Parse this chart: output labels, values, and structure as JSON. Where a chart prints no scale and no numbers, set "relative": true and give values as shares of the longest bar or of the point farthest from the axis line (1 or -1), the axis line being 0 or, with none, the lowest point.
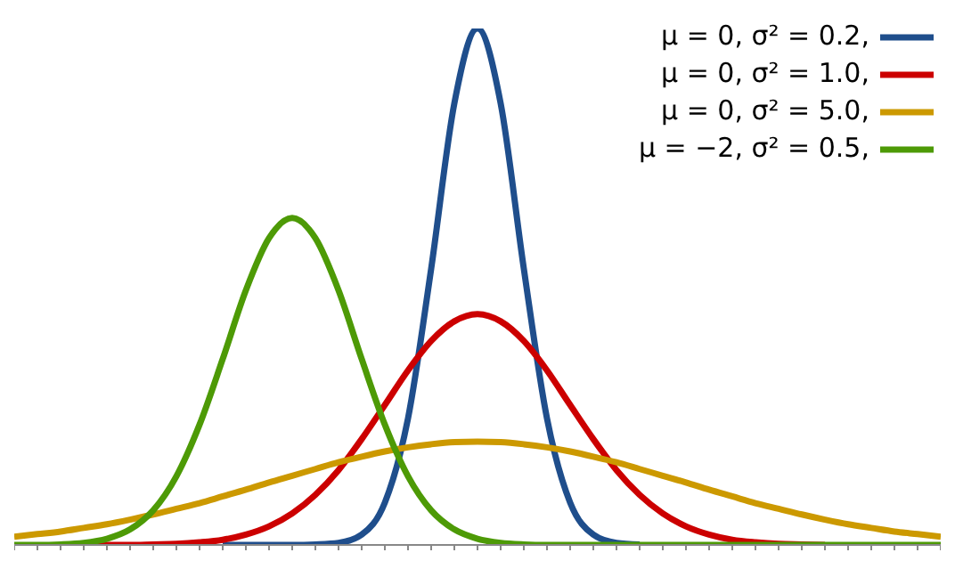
{
  "chart_data": {
    "type": "line",
    "relative": true,
    "legend": "top right",
    "categories": [
      null,
      null,
      null,
      null,
      null,
      null,
      null,
      null,
      null,
      null,
      null,
      null,
      null,
      null,
      null,
      null,
      null,
      null,
      null,
      null,
      null,
      null,
      null,
      null,
      null,
      null,
      null,
      null,
      null,
      null,
      null,
      null,
      null,
      null,
      null,
      null,
      null,
      null,
      null,
      null,
      null
    ],
    "series": [
      {
        "name": "μ = 0,   σ² = 0.2,",
        "color": "#1f4e8c",
        "values": [
          null,
          null,
          null,
          null,
          null,
          null,
          null,
          null,
          null,
          0,
          0,
          0,
          0,
          0.001,
          0.004,
          0.02,
          0.082,
          0.245,
          0.535,
          0.855,
          1,
          0.855,
          0.535,
          0.245,
          0.082,
          0.02,
          0.004,
          0.001,
          null,
          null,
          null,
          null,
          null,
          null,
          null,
          null,
          null,
          null,
          null,
          null,
          null
        ]
      },
      {
        "name": "μ = 0,   σ² = 1.0,",
        "color": "#cc0000",
        "values": [
          null,
          null,
          0,
          0,
          0,
          0,
          0.001,
          0.002,
          0.005,
          0.01,
          0.02,
          0.036,
          0.061,
          0.097,
          0.145,
          0.205,
          0.271,
          0.338,
          0.395,
          0.433,
          0.447,
          0.433,
          0.395,
          0.338,
          0.271,
          0.205,
          0.145,
          0.097,
          0.061,
          0.036,
          0.02,
          0.01,
          0.005,
          0.002,
          0.001,
          0,
          null,
          null,
          null,
          null,
          null
        ]
      },
      {
        "name": "μ = 0,   σ² = 5.0,",
        "color": "#cc9900",
        "values": [
          0.016,
          0.021,
          0.026,
          0.033,
          0.04,
          0.049,
          0.059,
          0.07,
          0.081,
          0.094,
          0.107,
          0.121,
          0.134,
          0.147,
          0.16,
          0.171,
          0.181,
          0.189,
          0.195,
          0.199,
          0.2,
          0.199,
          0.195,
          0.189,
          0.181,
          0.171,
          0.16,
          0.147,
          0.134,
          0.121,
          0.107,
          0.094,
          0.081,
          0.07,
          0.059,
          0.049,
          0.04,
          0.033,
          0.026,
          0.021,
          0.016
        ]
      },
      {
        "name": "μ = −2,  σ² = 0.5,",
        "color": "#4d9a06",
        "values": [
          0,
          0,
          0.001,
          0.004,
          0.012,
          0.03,
          0.067,
          0.133,
          0.233,
          0.36,
          0.493,
          0.594,
          0.633,
          0.594,
          0.493,
          0.36,
          0.233,
          0.133,
          0.067,
          0.03,
          0.012,
          0.004,
          0.001,
          0,
          0,
          0,
          0,
          0,
          0,
          0,
          0,
          0,
          0,
          0,
          0,
          0,
          0,
          0,
          0,
          0,
          0
        ]
      }
    ]
  }
}
